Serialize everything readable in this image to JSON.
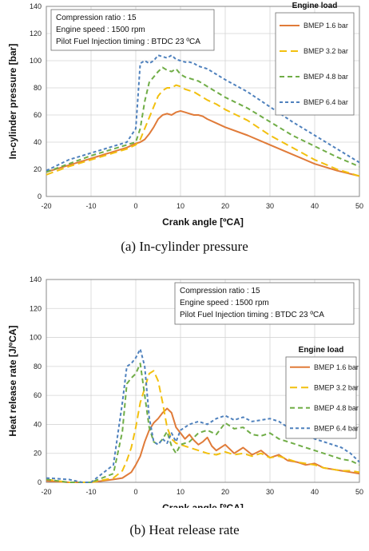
{
  "captions": {
    "top": "(a)  In-cylinder  pressure",
    "bottom": "(b)  Heat  release  rate"
  },
  "chart_data": [
    {
      "type": "line",
      "xlabel": "Crank angle  [ºCA]",
      "ylabel": "In-cylinder pressure [bar]",
      "xlim": [
        -20,
        50
      ],
      "ylim": [
        0,
        140
      ],
      "xticks": [
        -20,
        -10,
        0,
        10,
        20,
        30,
        40,
        50
      ],
      "yticks": [
        0,
        20,
        40,
        60,
        80,
        100,
        120,
        140
      ],
      "grid": true,
      "legend_position": "right",
      "legend_title": "Engine load",
      "info_lines": [
        "Compression ratio : 15",
        "Engine speed : 1500  rpm",
        "Pilot Fuel Injection timing : BTDC 23 ºCA"
      ],
      "series": [
        {
          "name": "BMEP 1.6 bar",
          "color": "#e07b39",
          "dash": "",
          "width": 2,
          "x": [
            -20,
            -15,
            -10,
            -5,
            -2,
            0,
            1,
            2,
            3,
            4,
            5,
            6,
            7,
            8,
            9,
            10,
            11,
            12,
            13,
            14,
            15,
            16,
            18,
            20,
            25,
            30,
            35,
            40,
            45,
            50
          ],
          "y": [
            18,
            23,
            28,
            33,
            36,
            39,
            40,
            42,
            46,
            51,
            57,
            60,
            61,
            60,
            62,
            63,
            62,
            61,
            60,
            60,
            59,
            57,
            54,
            51,
            45,
            38,
            31,
            24,
            19,
            15
          ]
        },
        {
          "name": "BMEP 3.2 bar",
          "color": "#f2c00f",
          "dash": "9,5",
          "width": 2,
          "x": [
            -20,
            -15,
            -10,
            -5,
            -2,
            0,
            1,
            2,
            3,
            4,
            5,
            6,
            7,
            8,
            9,
            10,
            11,
            12,
            13,
            14,
            15,
            16,
            18,
            20,
            25,
            30,
            35,
            40,
            45,
            50
          ],
          "y": [
            16,
            22,
            27,
            32,
            35,
            38,
            42,
            50,
            58,
            66,
            74,
            78,
            80,
            80,
            82,
            81,
            79,
            78,
            77,
            75,
            73,
            71,
            68,
            64,
            56,
            45,
            36,
            27,
            20,
            15
          ]
        },
        {
          "name": "BMEP 4.8 bar",
          "color": "#70ad47",
          "dash": "6,4",
          "width": 2,
          "x": [
            -20,
            -15,
            -10,
            -5,
            -2,
            0,
            1,
            2,
            3,
            4,
            5,
            6,
            7,
            8,
            9,
            10,
            11,
            12,
            13,
            14,
            15,
            16,
            18,
            20,
            25,
            30,
            35,
            40,
            45,
            50
          ],
          "y": [
            18,
            24,
            30,
            35,
            38,
            40,
            50,
            70,
            84,
            88,
            92,
            95,
            93,
            92,
            94,
            90,
            88,
            87,
            86,
            85,
            83,
            81,
            77,
            73,
            65,
            55,
            45,
            37,
            29,
            22
          ]
        },
        {
          "name": "BMEP 6.4 bar",
          "color": "#4f81bd",
          "dash": "4,3",
          "width": 2,
          "x": [
            -20,
            -15,
            -10,
            -5,
            -2,
            0,
            1,
            2,
            3,
            4,
            5,
            6,
            7,
            8,
            9,
            10,
            11,
            12,
            13,
            14,
            15,
            16,
            18,
            20,
            25,
            30,
            35,
            40,
            45,
            50
          ],
          "y": [
            19,
            27,
            32,
            37,
            40,
            50,
            98,
            100,
            98,
            100,
            104,
            103,
            102,
            104,
            101,
            100,
            99,
            99,
            98,
            96,
            95,
            94,
            90,
            86,
            77,
            66,
            55,
            45,
            35,
            25
          ]
        }
      ]
    },
    {
      "type": "line",
      "xlabel": "Crank angle  [ºCA]",
      "ylabel": "Heat release rate  [J/ºCA]",
      "xlim": [
        -20,
        50
      ],
      "ylim": [
        0,
        140
      ],
      "xticks": [
        -20,
        -10,
        0,
        10,
        20,
        30,
        40,
        50
      ],
      "yticks": [
        0,
        20,
        40,
        60,
        80,
        100,
        120,
        140
      ],
      "grid": true,
      "legend_position": "right",
      "legend_title": "Engine load",
      "info_lines": [
        "Compression ratio : 15",
        "Engine speed : 1500  rpm",
        "Pilot Fuel Injection timing : BTDC 23 ºCA"
      ],
      "series": [
        {
          "name": "BMEP 1.6 bar",
          "color": "#e07b39",
          "dash": "",
          "width": 2,
          "x": [
            -20,
            -15,
            -10,
            -5,
            -3,
            -1,
            0,
            1,
            2,
            3,
            4,
            5,
            6,
            7,
            8,
            9,
            10,
            11,
            12,
            13,
            14,
            15,
            16,
            17,
            18,
            20,
            22,
            24,
            26,
            28,
            30,
            32,
            34,
            36,
            38,
            40,
            42,
            44,
            46,
            48,
            50
          ],
          "y": [
            1,
            0,
            0,
            2,
            3,
            7,
            12,
            18,
            28,
            36,
            41,
            44,
            48,
            51,
            48,
            38,
            34,
            30,
            33,
            29,
            26,
            28,
            31,
            25,
            22,
            26,
            20,
            24,
            19,
            22,
            17,
            19,
            15,
            14,
            12,
            13,
            10,
            9,
            8,
            7,
            6
          ]
        },
        {
          "name": "BMEP 3.2 bar",
          "color": "#f2c00f",
          "dash": "9,5",
          "width": 2,
          "x": [
            -20,
            -15,
            -10,
            -5,
            -3,
            -2,
            -1,
            0,
            1,
            2,
            3,
            4,
            5,
            6,
            7,
            8,
            9,
            10,
            12,
            14,
            16,
            18,
            20,
            22,
            24,
            26,
            28,
            30,
            32,
            34,
            36,
            38,
            40,
            42,
            44,
            46,
            48,
            50
          ],
          "y": [
            2,
            0,
            0,
            3,
            8,
            15,
            24,
            38,
            55,
            65,
            75,
            77,
            70,
            55,
            38,
            30,
            27,
            26,
            24,
            22,
            20,
            19,
            21,
            19,
            20,
            18,
            20,
            17,
            18,
            16,
            14,
            13,
            12,
            10,
            9,
            8,
            8,
            7
          ]
        },
        {
          "name": "BMEP 4.8 bar",
          "color": "#70ad47",
          "dash": "6,4",
          "width": 2,
          "x": [
            -20,
            -15,
            -10,
            -5,
            -3,
            -2,
            -1,
            0,
            1,
            2,
            3,
            4,
            5,
            6,
            7,
            8,
            9,
            10,
            12,
            14,
            16,
            18,
            20,
            22,
            24,
            26,
            28,
            30,
            32,
            34,
            36,
            38,
            40,
            42,
            44,
            46,
            48,
            50
          ],
          "y": [
            2,
            0,
            0,
            6,
            35,
            68,
            72,
            75,
            82,
            60,
            38,
            28,
            26,
            30,
            35,
            25,
            20,
            26,
            28,
            34,
            36,
            33,
            41,
            37,
            38,
            33,
            32,
            34,
            30,
            28,
            26,
            24,
            22,
            20,
            18,
            16,
            15,
            12
          ]
        },
        {
          "name": "BMEP 6.4 bar",
          "color": "#4f81bd",
          "dash": "4,3",
          "width": 2,
          "x": [
            -20,
            -15,
            -12,
            -10,
            -5,
            -3,
            -2,
            -1,
            0,
            1,
            2,
            3,
            4,
            5,
            6,
            7,
            8,
            9,
            10,
            12,
            14,
            16,
            18,
            20,
            22,
            24,
            26,
            28,
            30,
            32,
            34,
            36,
            38,
            40,
            42,
            44,
            46,
            48,
            50
          ],
          "y": [
            3,
            2,
            0,
            0,
            12,
            55,
            80,
            82,
            86,
            92,
            80,
            45,
            28,
            26,
            30,
            27,
            34,
            28,
            36,
            40,
            42,
            40,
            44,
            46,
            43,
            45,
            42,
            43,
            44,
            42,
            38,
            36,
            34,
            30,
            28,
            26,
            24,
            20,
            14
          ]
        }
      ]
    }
  ]
}
